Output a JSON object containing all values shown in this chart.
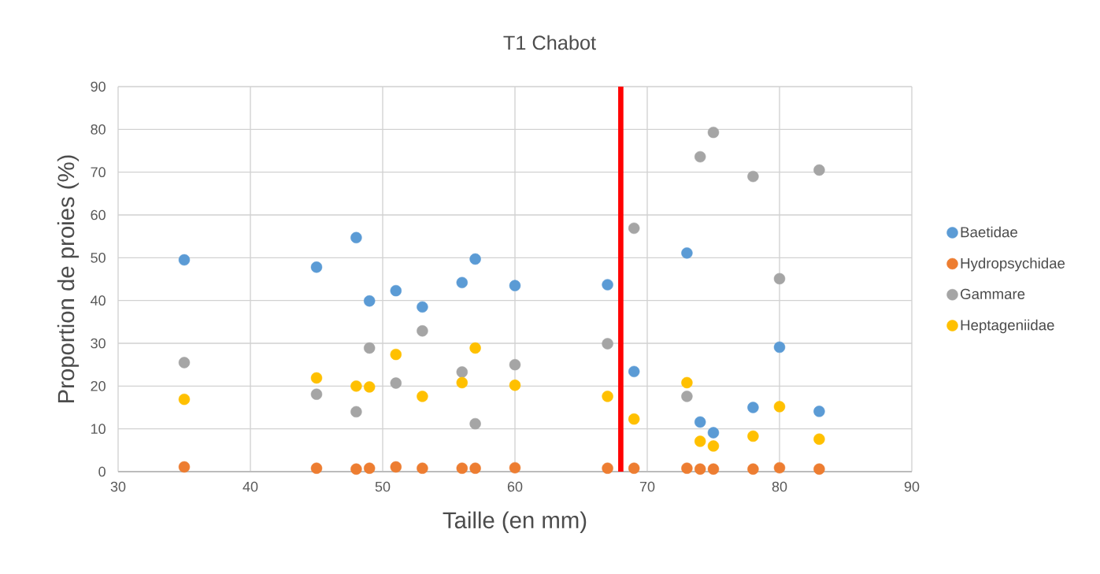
{
  "chart_data": {
    "type": "scatter",
    "title": "T1 Chabot",
    "xlabel": "Taille (en mm)",
    "ylabel": "Proportion de proies (%)",
    "x": [
      35,
      45,
      48,
      49,
      51,
      53,
      56,
      57,
      60,
      67,
      69,
      73,
      74,
      75,
      78,
      80,
      83
    ],
    "series": [
      {
        "name": "Baetidae",
        "color": "#5b9bd5",
        "values": [
          49.5,
          47.8,
          54.7,
          39.9,
          42.3,
          38.5,
          44.2,
          49.7,
          43.5,
          43.7,
          23.4,
          51.1,
          11.6,
          9.1,
          15.0,
          29.1,
          14.1
        ]
      },
      {
        "name": "Hydropsychidae",
        "color": "#ed7d31",
        "values": [
          1.1,
          0.8,
          0.6,
          0.8,
          1.1,
          0.8,
          0.8,
          0.8,
          0.9,
          0.8,
          0.8,
          0.8,
          0.6,
          0.6,
          0.6,
          0.9,
          0.6
        ]
      },
      {
        "name": "Gammare",
        "color": "#a5a5a5",
        "values": [
          25.5,
          18.1,
          14.0,
          28.9,
          20.7,
          32.9,
          23.3,
          11.2,
          25.0,
          29.9,
          56.9,
          17.6,
          73.6,
          79.3,
          69.0,
          45.1,
          70.5
        ]
      },
      {
        "name": "Heptageniidae",
        "color": "#ffc000",
        "values": [
          16.9,
          21.9,
          20.0,
          19.8,
          27.4,
          17.6,
          20.8,
          28.9,
          20.2,
          17.6,
          12.3,
          20.8,
          7.1,
          6.0,
          8.3,
          15.2,
          7.6
        ]
      }
    ],
    "xlim": [
      30,
      90
    ],
    "xticks": [
      30,
      40,
      50,
      60,
      70,
      80,
      90
    ],
    "ylim": [
      0,
      90
    ],
    "yticks": [
      0,
      10,
      20,
      30,
      40,
      50,
      60,
      70,
      80,
      90
    ],
    "ref_lines": [
      {
        "axis": "x",
        "value": 68,
        "color": "#ff0000"
      }
    ],
    "grid": true,
    "legend": "right",
    "marker": "circle"
  }
}
